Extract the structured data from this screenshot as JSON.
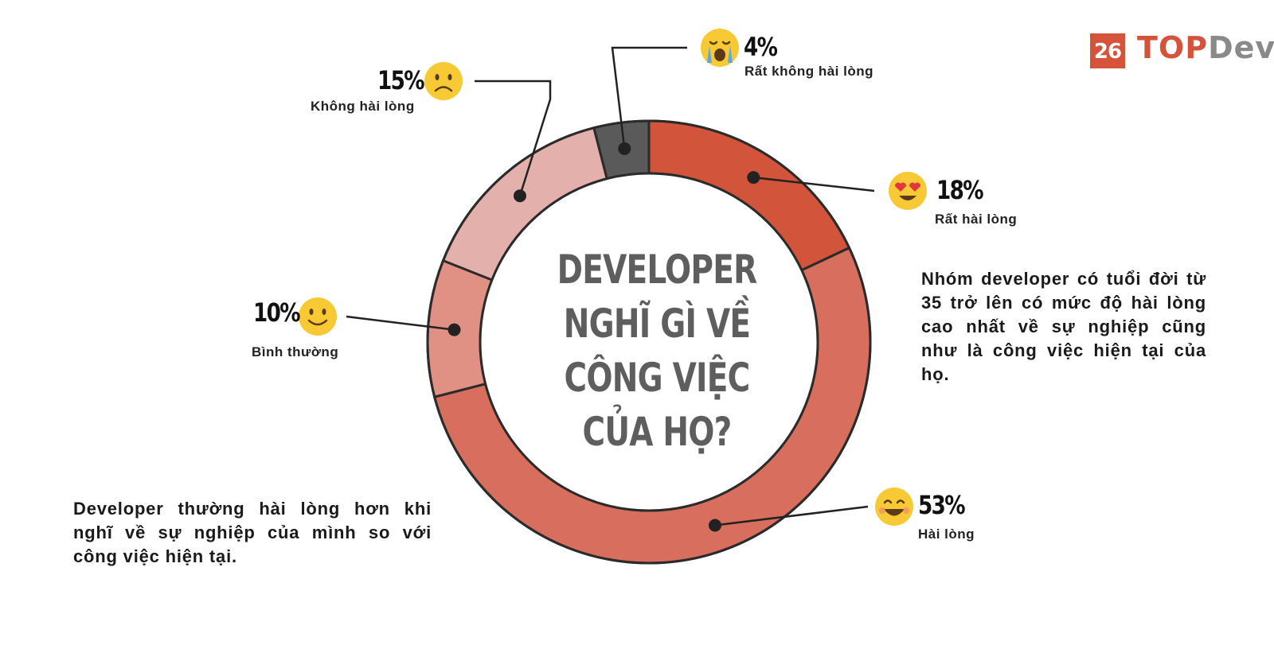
{
  "chart_data": {
    "type": "pie",
    "title_lines": [
      "DEVELOPER",
      "NGHĨ GÌ VỀ",
      "CÔNG VIỆC",
      "CỦA HỌ?"
    ],
    "slices": [
      {
        "label": "Rất hài lòng",
        "value": 18,
        "value_label": "18%",
        "color": "#d2543a",
        "emoji": "heart-eyes"
      },
      {
        "label": "Hài lòng",
        "value": 53,
        "value_label": "53%",
        "color": "#d86e5d",
        "emoji": "laughing"
      },
      {
        "label": "Bình thường",
        "value": 10,
        "value_label": "10%",
        "color": "#e09183",
        "emoji": "smile"
      },
      {
        "label": "Không hài lòng",
        "value": 15,
        "value_label": "15%",
        "color": "#e3b0ab",
        "emoji": "frown"
      },
      {
        "label": "Rất không hài lòng",
        "value": 4,
        "value_label": "4%",
        "color": "#5a5a5a",
        "emoji": "crying"
      }
    ]
  },
  "notes": {
    "right": "Nhóm developer có tuổi đời từ 35 trở lên có mức độ hài lòng cao nhất về sự nghiệp cũng như là công việc hiện tại của họ.",
    "left": "Developer thường hài lòng hơn khi nghĩ về sự nghiệp của mình so với công việc hiện tại."
  },
  "logo": {
    "badge": "26",
    "text_a": "TOP",
    "text_b": "Dev",
    "accent": "#d4533a"
  }
}
